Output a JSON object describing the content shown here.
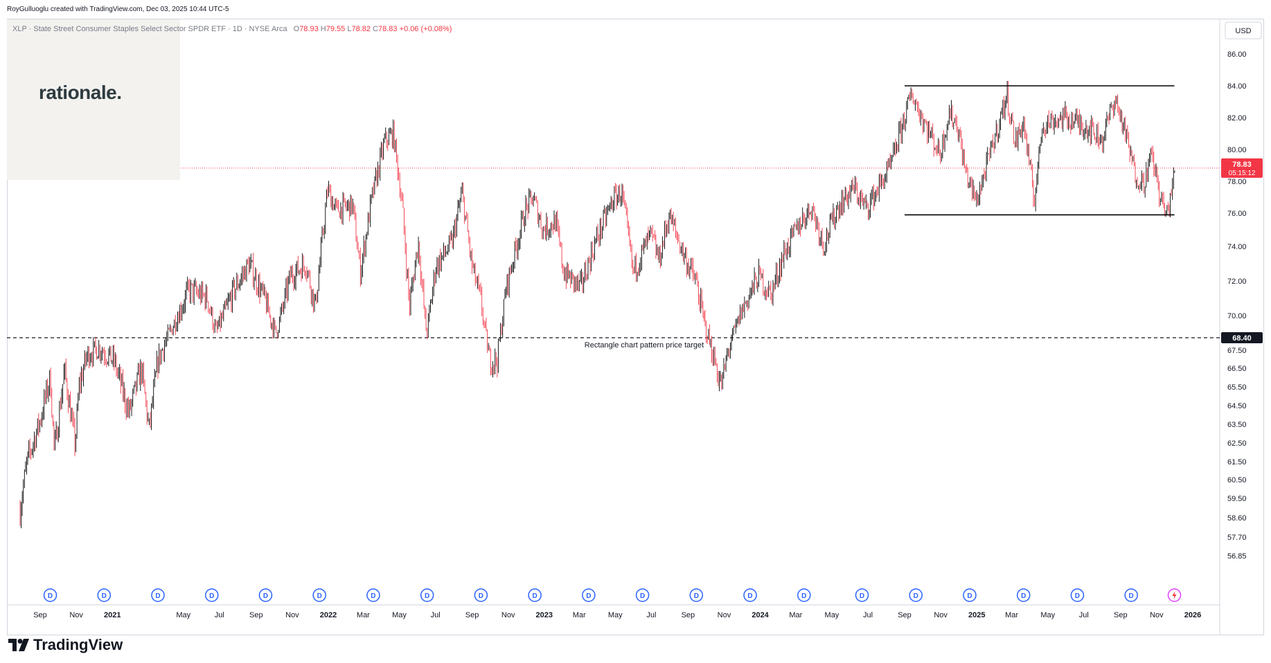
{
  "attribution": "RoyGulluoglu created with TradingView.com, Dec 03, 2025 10:44 UTC-5",
  "symbol_line": {
    "description": "XLP · State Street Consumer Staples Select Sector SPDR ETF · 1D · NYSE Arca",
    "open_label": "O",
    "open": "78.93",
    "high_label": "H",
    "high": "79.55",
    "low_label": "L",
    "low": "78.82",
    "close_label": "C",
    "close": "78.83",
    "change": "+0.06 (+0.08%)"
  },
  "logo_text": "rationale.",
  "brand": "TradingView",
  "currency": "USD",
  "colors": {
    "up": "#000000",
    "down": "#f23645",
    "price_label": "#f23645",
    "target_label": "#131722",
    "dividend": "#2962ff"
  },
  "chart_data": {
    "type": "candlestick",
    "symbol": "XLP",
    "interval": "1D",
    "y_axis_ticks": [
      "86.00",
      "84.00",
      "82.00",
      "80.00",
      "78.00",
      "76.00",
      "74.00",
      "72.00",
      "70.00",
      "67.50",
      "66.50",
      "65.50",
      "64.50",
      "63.50",
      "62.50",
      "61.50",
      "60.50",
      "59.50",
      "58.60",
      "57.70",
      "56.85"
    ],
    "y_axis_tick_values": [
      86.0,
      84.0,
      82.0,
      80.0,
      78.0,
      76.0,
      74.0,
      72.0,
      70.0,
      67.5,
      66.5,
      65.5,
      64.5,
      63.5,
      62.5,
      61.5,
      60.5,
      59.5,
      58.6,
      57.7,
      56.85
    ],
    "x_axis_labels": [
      "Sep",
      "Nov",
      "2021",
      "May",
      "Jul",
      "Sep",
      "Nov",
      "2022",
      "Mar",
      "May",
      "Jul",
      "Sep",
      "Nov",
      "2023",
      "Mar",
      "May",
      "Jul",
      "Sep",
      "Nov",
      "2024",
      "Mar",
      "May",
      "Jul",
      "Sep",
      "Nov",
      "2025",
      "Mar",
      "May",
      "Jul",
      "Sep",
      "Nov",
      "2026"
    ],
    "x_axis_dates": [
      "2020-09-01",
      "2020-11-01",
      "2021-01-01",
      "2021-05-01",
      "2021-07-01",
      "2021-09-01",
      "2021-11-01",
      "2022-01-01",
      "2022-03-01",
      "2022-05-01",
      "2022-07-01",
      "2022-09-01",
      "2022-11-01",
      "2023-01-01",
      "2023-03-01",
      "2023-05-01",
      "2023-07-01",
      "2023-09-01",
      "2023-11-01",
      "2024-01-01",
      "2024-03-01",
      "2024-05-01",
      "2024-07-01",
      "2024-09-01",
      "2024-11-01",
      "2025-01-01",
      "2025-03-01",
      "2025-05-01",
      "2025-07-01",
      "2025-09-01",
      "2025-11-01",
      "2026-01-01"
    ],
    "bold_x_labels": [
      "2021",
      "2022",
      "2023",
      "2024",
      "2025",
      "2026"
    ],
    "price_path": [
      [
        "2020-07-29",
        59.0
      ],
      [
        "2020-08-10",
        61.5
      ],
      [
        "2020-08-31",
        63.6
      ],
      [
        "2020-09-18",
        66.0
      ],
      [
        "2020-09-25",
        62.0
      ],
      [
        "2020-10-12",
        66.4
      ],
      [
        "2020-10-30",
        62.4
      ],
      [
        "2020-11-06",
        65.6
      ],
      [
        "2020-11-20",
        67.3
      ],
      [
        "2020-12-10",
        67.7
      ],
      [
        "2021-01-04",
        66.9
      ],
      [
        "2021-01-29",
        64.1
      ],
      [
        "2021-02-19",
        66.5
      ],
      [
        "2021-03-04",
        63.2
      ],
      [
        "2021-03-19",
        66.9
      ],
      [
        "2021-04-16",
        69.5
      ],
      [
        "2021-05-10",
        71.5
      ],
      [
        "2021-06-11",
        71.0
      ],
      [
        "2021-06-25",
        68.8
      ],
      [
        "2021-07-23",
        71.3
      ],
      [
        "2021-08-20",
        73.0
      ],
      [
        "2021-09-17",
        70.8
      ],
      [
        "2021-10-04",
        68.7
      ],
      [
        "2021-10-29",
        72.3
      ],
      [
        "2021-11-24",
        73.0
      ],
      [
        "2021-12-10",
        70.5
      ],
      [
        "2021-12-31",
        77.5
      ],
      [
        "2022-01-14",
        76.2
      ],
      [
        "2022-02-11",
        76.5
      ],
      [
        "2022-02-24",
        72.5
      ],
      [
        "2022-03-16",
        77.0
      ],
      [
        "2022-04-06",
        80.5
      ],
      [
        "2022-04-21",
        81.0
      ],
      [
        "2022-05-06",
        76.5
      ],
      [
        "2022-05-18",
        70.5
      ],
      [
        "2022-06-02",
        74.3
      ],
      [
        "2022-06-16",
        68.7
      ],
      [
        "2022-07-01",
        72.8
      ],
      [
        "2022-07-29",
        74.2
      ],
      [
        "2022-08-15",
        77.3
      ],
      [
        "2022-08-31",
        73.0
      ],
      [
        "2022-09-16",
        70.8
      ],
      [
        "2022-09-30",
        67.0
      ],
      [
        "2022-10-13",
        66.9
      ],
      [
        "2022-10-28",
        71.5
      ],
      [
        "2022-11-30",
        76.2
      ],
      [
        "2022-12-13",
        77.0
      ],
      [
        "2022-12-30",
        75.0
      ],
      [
        "2023-01-20",
        75.5
      ],
      [
        "2023-02-03",
        72.5
      ],
      [
        "2023-03-03",
        71.6
      ],
      [
        "2023-03-31",
        74.5
      ],
      [
        "2023-04-28",
        76.9
      ],
      [
        "2023-05-12",
        77.3
      ],
      [
        "2023-05-31",
        72.5
      ],
      [
        "2023-06-30",
        74.7
      ],
      [
        "2023-07-14",
        73.2
      ],
      [
        "2023-07-31",
        75.9
      ],
      [
        "2023-08-25",
        73.5
      ],
      [
        "2023-09-15",
        71.9
      ],
      [
        "2023-09-29",
        69.4
      ],
      [
        "2023-10-13",
        67.3
      ],
      [
        "2023-10-27",
        65.5
      ],
      [
        "2023-11-10",
        67.8
      ],
      [
        "2023-11-30",
        70.2
      ],
      [
        "2023-12-29",
        72.3
      ],
      [
        "2024-01-19",
        71.2
      ],
      [
        "2024-02-09",
        73.5
      ],
      [
        "2024-03-08",
        75.4
      ],
      [
        "2024-03-28",
        76.4
      ],
      [
        "2024-04-17",
        74.1
      ],
      [
        "2024-05-10",
        76.3
      ],
      [
        "2024-06-07",
        77.6
      ],
      [
        "2024-06-28",
        76.3
      ],
      [
        "2024-07-19",
        77.6
      ],
      [
        "2024-08-09",
        79.0
      ],
      [
        "2024-08-30",
        81.8
      ],
      [
        "2024-09-13",
        83.5
      ],
      [
        "2024-09-27",
        82.3
      ],
      [
        "2024-10-11",
        81.2
      ],
      [
        "2024-10-31",
        79.7
      ],
      [
        "2024-11-15",
        82.3
      ],
      [
        "2024-11-29",
        81.6
      ],
      [
        "2024-12-13",
        78.6
      ],
      [
        "2024-12-31",
        76.7
      ],
      [
        "2025-01-14",
        78.5
      ],
      [
        "2025-02-04",
        81.2
      ],
      [
        "2025-02-21",
        83.4
      ],
      [
        "2025-03-07",
        80.4
      ],
      [
        "2025-03-21",
        81.7
      ],
      [
        "2025-04-08",
        76.8
      ],
      [
        "2025-04-22",
        81.6
      ],
      [
        "2025-05-09",
        81.8
      ],
      [
        "2025-05-30",
        82.0
      ],
      [
        "2025-06-20",
        81.7
      ],
      [
        "2025-07-11",
        81.3
      ],
      [
        "2025-08-01",
        80.6
      ],
      [
        "2025-08-22",
        83.2
      ],
      [
        "2025-09-05",
        81.6
      ],
      [
        "2025-09-26",
        78.4
      ],
      [
        "2025-10-10",
        77.9
      ],
      [
        "2025-10-24",
        79.7
      ],
      [
        "2025-11-07",
        77.0
      ],
      [
        "2025-11-18",
        75.8
      ],
      [
        "2025-12-03",
        78.83
      ]
    ],
    "annotations": [
      {
        "type": "hline",
        "label": "Rectangle chart pattern price target",
        "price": 68.4,
        "price_label": "68.40",
        "style": "dashed"
      },
      {
        "type": "segment",
        "name": "rectangle-top",
        "from": "2024-09-01",
        "to": "2025-12-01",
        "price": 84.0
      },
      {
        "type": "segment",
        "name": "rectangle-bottom",
        "from": "2024-09-01",
        "to": "2025-12-01",
        "price": 75.9
      }
    ],
    "last_price": {
      "value": 78.83,
      "label": "78.83",
      "countdown": "05:15:12"
    },
    "dividend_marker_label": "D",
    "dividend_dates": [
      "2020-09-18",
      "2020-12-18",
      "2021-03-19",
      "2021-06-18",
      "2021-09-17",
      "2021-12-17",
      "2022-03-18",
      "2022-06-17",
      "2022-09-16",
      "2022-12-16",
      "2023-03-17",
      "2023-06-16",
      "2023-09-15",
      "2023-12-15",
      "2024-03-15",
      "2024-06-21",
      "2024-09-20",
      "2024-12-20",
      "2025-03-21",
      "2025-06-20",
      "2025-09-19"
    ],
    "flash_marker_date": "2025-12-01",
    "grid": false,
    "legend": "top-left"
  }
}
